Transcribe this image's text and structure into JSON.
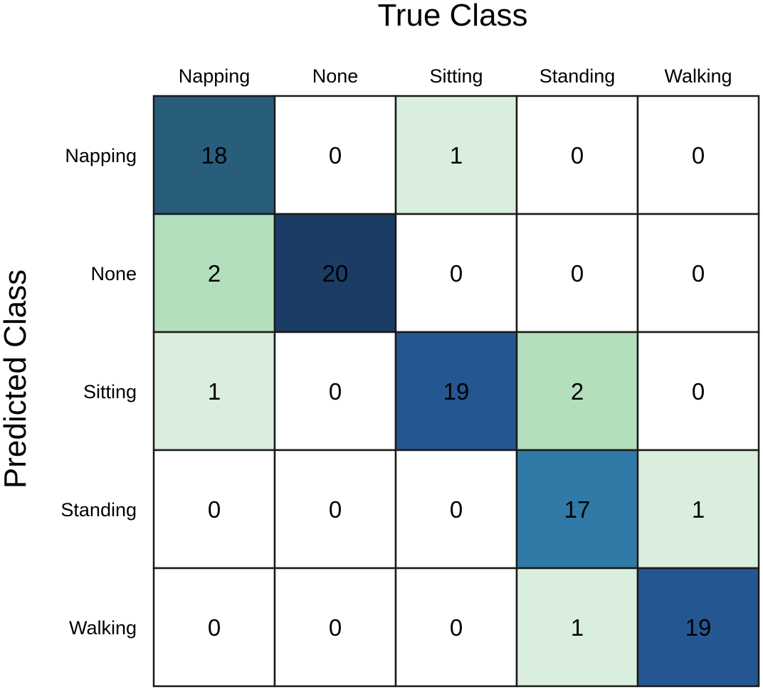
{
  "chart_data": {
    "type": "heatmap",
    "title": "",
    "xlabel": "True Class",
    "ylabel": "Predicted Class",
    "x_categories": [
      "Napping",
      "None",
      "Sitting",
      "Standing",
      "Walking"
    ],
    "y_categories": [
      "Napping",
      "None",
      "Sitting",
      "Standing",
      "Walking"
    ],
    "values": [
      [
        18,
        0,
        1,
        0,
        0
      ],
      [
        2,
        20,
        0,
        0,
        0
      ],
      [
        1,
        0,
        19,
        2,
        0
      ],
      [
        0,
        0,
        0,
        17,
        1
      ],
      [
        0,
        0,
        0,
        1,
        19
      ]
    ],
    "colorscale": {
      "0": "#ffffff",
      "1": "#d9eedc",
      "2": "#b3dfbc",
      "17": "#2f7aa6",
      "18": "#285e7c",
      "19": "#245692",
      "20": "#1b3c65"
    },
    "cell_border_color": "#1a1a1a",
    "x_axis_position": "top",
    "legend": "none"
  }
}
